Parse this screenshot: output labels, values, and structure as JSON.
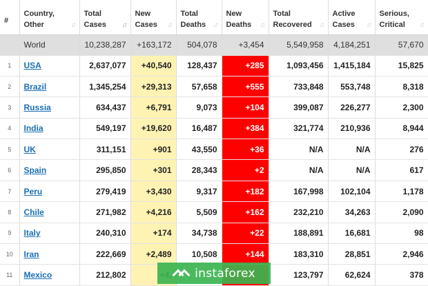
{
  "columns": [
    {
      "label1": "#",
      "label2": ""
    },
    {
      "label1": "Country,",
      "label2": "Other"
    },
    {
      "label1": "Total",
      "label2": "Cases"
    },
    {
      "label1": "New",
      "label2": "Cases"
    },
    {
      "label1": "Total",
      "label2": "Deaths"
    },
    {
      "label1": "New",
      "label2": "Deaths"
    },
    {
      "label1": "Total",
      "label2": "Recovered"
    },
    {
      "label1": "Active",
      "label2": "Cases"
    },
    {
      "label1": "Serious,",
      "label2": "Critical"
    }
  ],
  "world": {
    "country": "World",
    "total_cases": "10,238,287",
    "new_cases": "+163,172",
    "total_deaths": "504,078",
    "new_deaths": "+3,454",
    "total_recovered": "5,549,958",
    "active_cases": "4,184,251",
    "serious": "57,670"
  },
  "rows": [
    {
      "idx": "1",
      "country": "USA",
      "total_cases": "2,637,077",
      "new_cases": "+40,540",
      "total_deaths": "128,437",
      "new_deaths": "+285",
      "total_recovered": "1,093,456",
      "active_cases": "1,415,184",
      "serious": "15,825"
    },
    {
      "idx": "2",
      "country": "Brazil",
      "total_cases": "1,345,254",
      "new_cases": "+29,313",
      "total_deaths": "57,658",
      "new_deaths": "+555",
      "total_recovered": "733,848",
      "active_cases": "553,748",
      "serious": "8,318"
    },
    {
      "idx": "3",
      "country": "Russia",
      "total_cases": "634,437",
      "new_cases": "+6,791",
      "total_deaths": "9,073",
      "new_deaths": "+104",
      "total_recovered": "399,087",
      "active_cases": "226,277",
      "serious": "2,300"
    },
    {
      "idx": "4",
      "country": "India",
      "total_cases": "549,197",
      "new_cases": "+19,620",
      "total_deaths": "16,487",
      "new_deaths": "+384",
      "total_recovered": "321,774",
      "active_cases": "210,936",
      "serious": "8,944"
    },
    {
      "idx": "5",
      "country": "UK",
      "total_cases": "311,151",
      "new_cases": "+901",
      "total_deaths": "43,550",
      "new_deaths": "+36",
      "total_recovered": "N/A",
      "active_cases": "N/A",
      "serious": "276"
    },
    {
      "idx": "6",
      "country": "Spain",
      "total_cases": "295,850",
      "new_cases": "+301",
      "total_deaths": "28,343",
      "new_deaths": "+2",
      "total_recovered": "N/A",
      "active_cases": "N/A",
      "serious": "617"
    },
    {
      "idx": "7",
      "country": "Peru",
      "total_cases": "279,419",
      "new_cases": "+3,430",
      "total_deaths": "9,317",
      "new_deaths": "+182",
      "total_recovered": "167,998",
      "active_cases": "102,104",
      "serious": "1,178"
    },
    {
      "idx": "8",
      "country": "Chile",
      "total_cases": "271,982",
      "new_cases": "+4,216",
      "total_deaths": "5,509",
      "new_deaths": "+162",
      "total_recovered": "232,210",
      "active_cases": "34,263",
      "serious": "2,090"
    },
    {
      "idx": "9",
      "country": "Italy",
      "total_cases": "240,310",
      "new_cases": "+174",
      "total_deaths": "34,738",
      "new_deaths": "+22",
      "total_recovered": "188,891",
      "active_cases": "16,681",
      "serious": "98"
    },
    {
      "idx": "10",
      "country": "Iran",
      "total_cases": "222,669",
      "new_cases": "+2,489",
      "total_deaths": "10,508",
      "new_deaths": "+144",
      "total_recovered": "183,310",
      "active_cases": "28,851",
      "serious": "2,946"
    },
    {
      "idx": "11",
      "country": "Mexico",
      "total_cases": "212,802",
      "new_cases": "+4,",
      "total_deaths": "",
      "new_deaths": "",
      "total_recovered": "123,797",
      "active_cases": "62,624",
      "serious": "378"
    }
  ],
  "watermark": {
    "text": "instaforex"
  },
  "colors": {
    "new_cases_bg": "#fff3b3",
    "new_deaths_bg": "#ff0000",
    "link": "#1a6fb5",
    "watermark": "#3cb450"
  }
}
